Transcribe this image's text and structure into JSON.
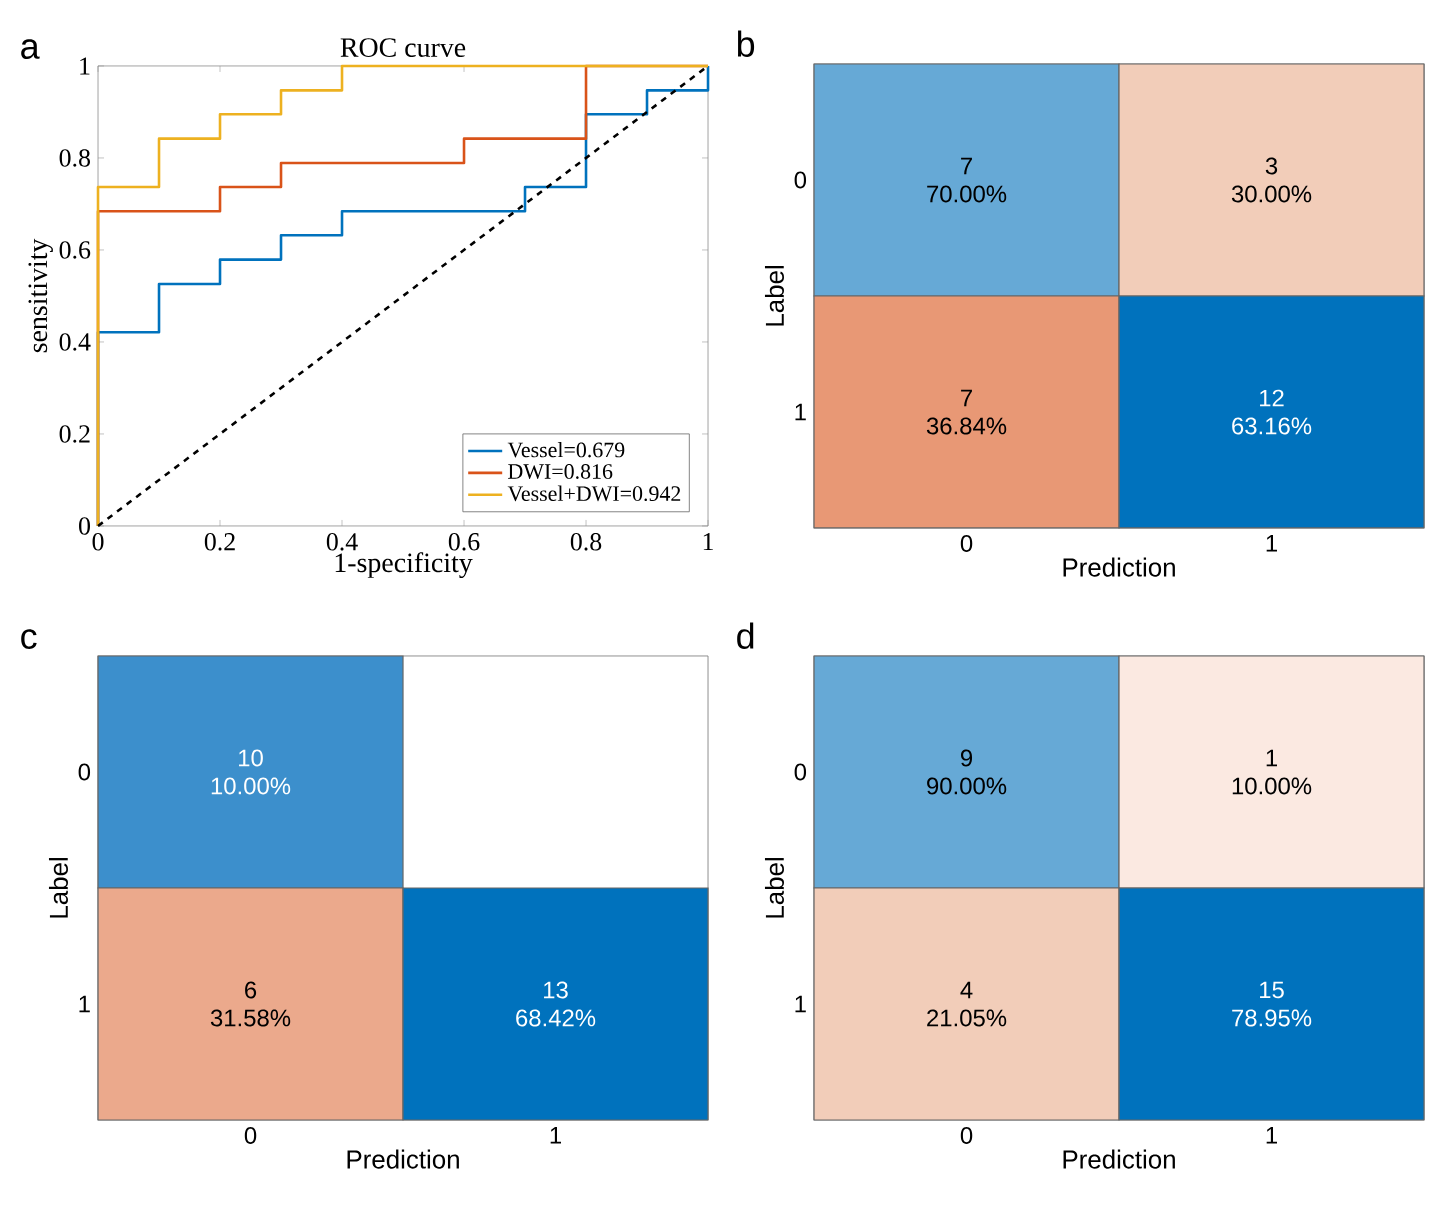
{
  "chart_data": [
    {
      "type": "line",
      "title": "ROC curve",
      "xlabel": "1-specificity",
      "ylabel": "sensitivity",
      "annotations": [
        "a"
      ],
      "xlim": [
        0,
        1
      ],
      "ylim": [
        0,
        1
      ],
      "xticks": [
        0,
        0.2,
        0.4,
        0.6,
        0.8,
        1
      ],
      "yticks": [
        0,
        0.2,
        0.4,
        0.6,
        0.8,
        1
      ],
      "legend": "bottom right",
      "series": [
        {
          "name": "Vessel=0.679",
          "type": "step",
          "color": "#0072bd",
          "x": [
            0,
            0,
            0.1,
            0.2,
            0.3,
            0.4,
            0.7,
            0.8,
            0.9,
            1
          ],
          "values": [
            0,
            0.421,
            0.526,
            0.579,
            0.632,
            0.684,
            0.737,
            0.895,
            0.947,
            1
          ]
        },
        {
          "name": "DWI=0.816",
          "type": "step",
          "color": "#d95319",
          "x": [
            0,
            0,
            0.2,
            0.3,
            0.6,
            0.8,
            1
          ],
          "values": [
            0,
            0.684,
            0.737,
            0.789,
            0.842,
            1,
            1
          ]
        },
        {
          "name": "Vessel+DWI=0.942",
          "type": "step",
          "color": "#edb120",
          "x": [
            0,
            0,
            0.1,
            0.2,
            0.3,
            0.4,
            1
          ],
          "values": [
            0,
            0.737,
            0.842,
            0.895,
            0.947,
            1,
            1
          ]
        },
        {
          "type": "line",
          "color": "#000000",
          "line_style": "dashed",
          "x": [
            0,
            1
          ],
          "values": [
            0,
            1
          ]
        }
      ]
    },
    {
      "type": "heatmap",
      "xlabel": "Prediction",
      "ylabel": "Label",
      "data_labels": true,
      "categories": [
        "0",
        "1"
      ],
      "y_categories": [
        "0",
        "1"
      ],
      "cells": [
        [
          7,
          3
        ],
        [
          7,
          12
        ]
      ],
      "colors": [
        [
          "#66a9d6",
          "#f2cdb9"
        ],
        [
          "#e89875",
          "#0072bd"
        ]
      ],
      "annotations": [
        "b",
        "70.00%",
        "30.00%",
        "36.84%",
        "63.16%"
      ]
    },
    {
      "type": "heatmap",
      "xlabel": "Prediction",
      "ylabel": "Label",
      "data_labels": true,
      "categories": [
        "0",
        "1"
      ],
      "y_categories": [
        "0",
        "1"
      ],
      "cells": [
        [
          10,
          null
        ],
        [
          6,
          13
        ]
      ],
      "colors": [
        [
          "#3c8fcc",
          null
        ],
        [
          "#eba98c",
          "#0072bd"
        ]
      ],
      "annotations": [
        "c",
        "10.00%",
        "31.58%",
        "68.42%"
      ]
    },
    {
      "type": "heatmap",
      "xlabel": "Prediction",
      "ylabel": "Label",
      "data_labels": true,
      "categories": [
        "0",
        "1"
      ],
      "y_categories": [
        "0",
        "1"
      ],
      "cells": [
        [
          9,
          1
        ],
        [
          4,
          15
        ]
      ],
      "colors": [
        [
          "#66a9d6",
          "#fbe9e1"
        ],
        [
          "#f2cdb9",
          "#0072bd"
        ]
      ],
      "annotations": [
        "d",
        "90.00%",
        "10.00%",
        "21.05%",
        "78.95%"
      ]
    }
  ]
}
